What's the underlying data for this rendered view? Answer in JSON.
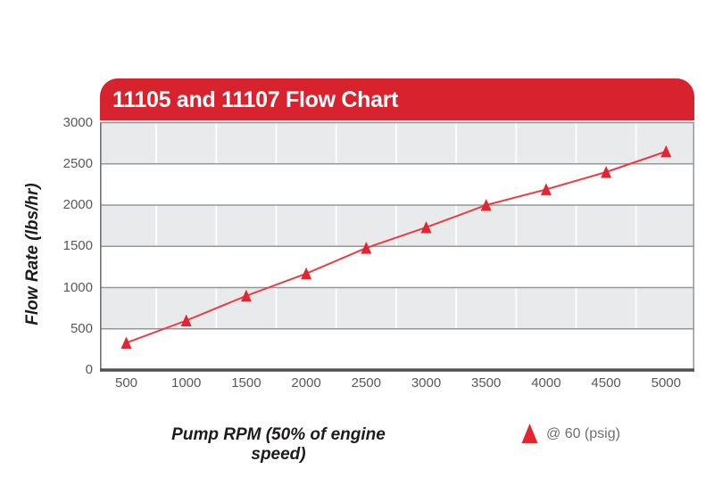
{
  "banner": {
    "title": "11105 and 11107 Flow Chart"
  },
  "axes": {
    "y_title": "Flow Rate (lbs/hr)",
    "x_title": "Pump RPM (50% of engine speed)"
  },
  "legend": {
    "label": "@ 60 (psig)",
    "marker": "triangle-up-icon"
  },
  "colors": {
    "banner_red": "#d8232e",
    "marker_red": "#e42530",
    "line_red": "#ee3a43",
    "band_gray": "#e9eaec",
    "boundary_gray": "#95979a",
    "axis_dark": "#4f5052",
    "left_border": "#707274",
    "right_border": "#9b9da0",
    "vgrid_white": "#ffffff",
    "tick_text": "#58595b",
    "legend_text": "#6d6e71"
  },
  "chart_data": {
    "type": "line",
    "title": "11105 and 11107 Flow Chart",
    "xlabel": "Pump RPM (50% of engine speed)",
    "ylabel": "Flow Rate (lbs/hr)",
    "x": [
      500,
      1000,
      1500,
      2000,
      2500,
      3000,
      3500,
      4000,
      4500,
      5000
    ],
    "series": [
      {
        "name": "@ 60 (psig)",
        "marker": "red triangle-up",
        "values": [
          330,
          600,
          900,
          1170,
          1480,
          1730,
          2000,
          2190,
          2400,
          2650
        ]
      }
    ],
    "x_ticks": [
      500,
      1000,
      1500,
      2000,
      2500,
      3000,
      3500,
      4000,
      4500,
      5000
    ],
    "y_ticks": [
      0,
      500,
      1000,
      1500,
      2000,
      2500,
      3000
    ],
    "xlim": [
      250,
      5250
    ],
    "ylim": [
      0,
      3000
    ],
    "grid": "gray horizontal bands every 500 (500-1000, 1500-2000, 2500-3000); white vertical gridlines at midpoints between x ticks",
    "legend_position": "bottom-right below axis"
  }
}
